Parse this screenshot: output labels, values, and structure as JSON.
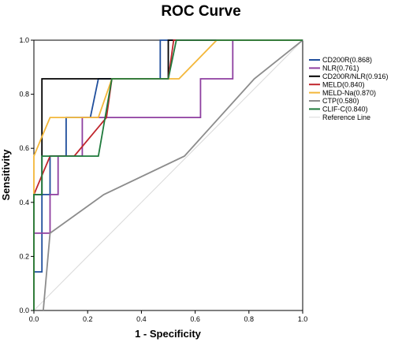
{
  "chart_data": {
    "type": "line",
    "title": "ROC Curve",
    "xlabel": "1 - Specificity",
    "ylabel": "Sensitivity",
    "xlim": [
      0,
      1
    ],
    "ylim": [
      0,
      1
    ],
    "xticks": [
      "0.0",
      "0.2",
      "0.4",
      "0.6",
      "0.8",
      "1.0"
    ],
    "yticks": [
      "0.0",
      "0.2",
      "0.4",
      "0.6",
      "0.8",
      "1.0"
    ],
    "grid": false,
    "legend_position": "right",
    "series": [
      {
        "name": "CD200R(0.868)",
        "color": "#1f4e9c",
        "points": [
          [
            0,
            0
          ],
          [
            0,
            0.143
          ],
          [
            0.03,
            0.143
          ],
          [
            0.03,
            0.429
          ],
          [
            0.06,
            0.429
          ],
          [
            0.06,
            0.571
          ],
          [
            0.12,
            0.571
          ],
          [
            0.12,
            0.714
          ],
          [
            0.21,
            0.714
          ],
          [
            0.24,
            0.857
          ],
          [
            0.47,
            0.857
          ],
          [
            0.47,
            1.0
          ],
          [
            1.0,
            1.0
          ]
        ]
      },
      {
        "name": "NLR(0.761)",
        "color": "#8e3fa0",
        "points": [
          [
            0,
            0
          ],
          [
            0,
            0.286
          ],
          [
            0.06,
            0.286
          ],
          [
            0.06,
            0.429
          ],
          [
            0.09,
            0.429
          ],
          [
            0.09,
            0.571
          ],
          [
            0.18,
            0.571
          ],
          [
            0.18,
            0.714
          ],
          [
            0.62,
            0.714
          ],
          [
            0.62,
            0.857
          ],
          [
            0.74,
            0.857
          ],
          [
            0.74,
            1.0
          ],
          [
            1.0,
            1.0
          ]
        ]
      },
      {
        "name": "CD200R/NLR(0.916)",
        "color": "#000000",
        "points": [
          [
            0,
            0
          ],
          [
            0,
            0.429
          ],
          [
            0.03,
            0.429
          ],
          [
            0.03,
            0.857
          ],
          [
            0.5,
            0.857
          ],
          [
            0.5,
            1.0
          ],
          [
            1.0,
            1.0
          ]
        ]
      },
      {
        "name": "MELD(0.840)",
        "color": "#c0262d",
        "points": [
          [
            0,
            0
          ],
          [
            0,
            0.429
          ],
          [
            0.06,
            0.571
          ],
          [
            0.15,
            0.571
          ],
          [
            0.27,
            0.714
          ],
          [
            0.29,
            0.857
          ],
          [
            0.5,
            0.857
          ],
          [
            0.52,
            1.0
          ],
          [
            1.0,
            1.0
          ]
        ]
      },
      {
        "name": "MELD-Na(0.870)",
        "color": "#f3b73a",
        "points": [
          [
            0,
            0
          ],
          [
            0,
            0.571
          ],
          [
            0.03,
            0.643
          ],
          [
            0.06,
            0.714
          ],
          [
            0.24,
            0.714
          ],
          [
            0.29,
            0.857
          ],
          [
            0.54,
            0.857
          ],
          [
            0.68,
            1.0
          ],
          [
            1.0,
            1.0
          ]
        ]
      },
      {
        "name": "CTP(0.580)",
        "color": "#8c8c8c",
        "points": [
          [
            0.035,
            0
          ],
          [
            0.06,
            0.286
          ],
          [
            0.26,
            0.429
          ],
          [
            0.56,
            0.571
          ],
          [
            0.82,
            0.857
          ],
          [
            1.0,
            1.0
          ]
        ]
      },
      {
        "name": "CLIF-C(0.840)",
        "color": "#1f7a3c",
        "points": [
          [
            0,
            0
          ],
          [
            0,
            0.429
          ],
          [
            0.03,
            0.429
          ],
          [
            0.03,
            0.571
          ],
          [
            0.24,
            0.571
          ],
          [
            0.29,
            0.857
          ],
          [
            0.5,
            0.857
          ],
          [
            0.53,
            1.0
          ],
          [
            1.0,
            1.0
          ]
        ]
      },
      {
        "name": "Reference Line",
        "color": "#d9d9d9",
        "points": [
          [
            0,
            0
          ],
          [
            1,
            1
          ]
        ]
      }
    ]
  }
}
